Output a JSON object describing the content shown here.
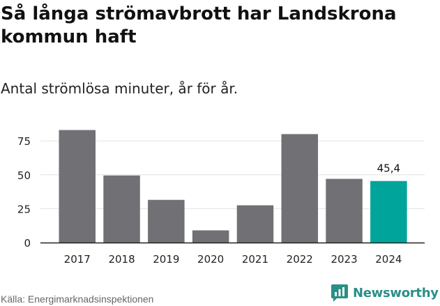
{
  "chart_data": {
    "type": "bar",
    "title": "Så långa strömavbrott har Landskrona kommun haft",
    "subtitle": "Antal strömlösa minuter, år för år.",
    "categories": [
      "2017",
      "2018",
      "2019",
      "2020",
      "2021",
      "2022",
      "2023",
      "2024"
    ],
    "values": [
      83,
      49.5,
      31.5,
      9,
      27.5,
      80,
      47,
      45.4
    ],
    "highlight_index": 7,
    "data_labels": [
      {
        "index": 7,
        "text": "45,4"
      }
    ],
    "yticks": [
      "0",
      "25",
      "50",
      "75"
    ],
    "ytick_values": [
      0,
      25,
      50,
      75
    ],
    "ylim": [
      0,
      90
    ],
    "xlabel": "",
    "ylabel": "",
    "grid": true
  },
  "colors": {
    "bar": "#717074",
    "highlight": "#00a49a",
    "grid": "#e2e2e2",
    "axis": "#222222",
    "logo": "#2a8f86"
  },
  "footer": {
    "source": "Källa: Energimarknadsinspektionen",
    "logo_text": "Newsworthy",
    "logo_icon": "newsworthy-logo-icon"
  }
}
